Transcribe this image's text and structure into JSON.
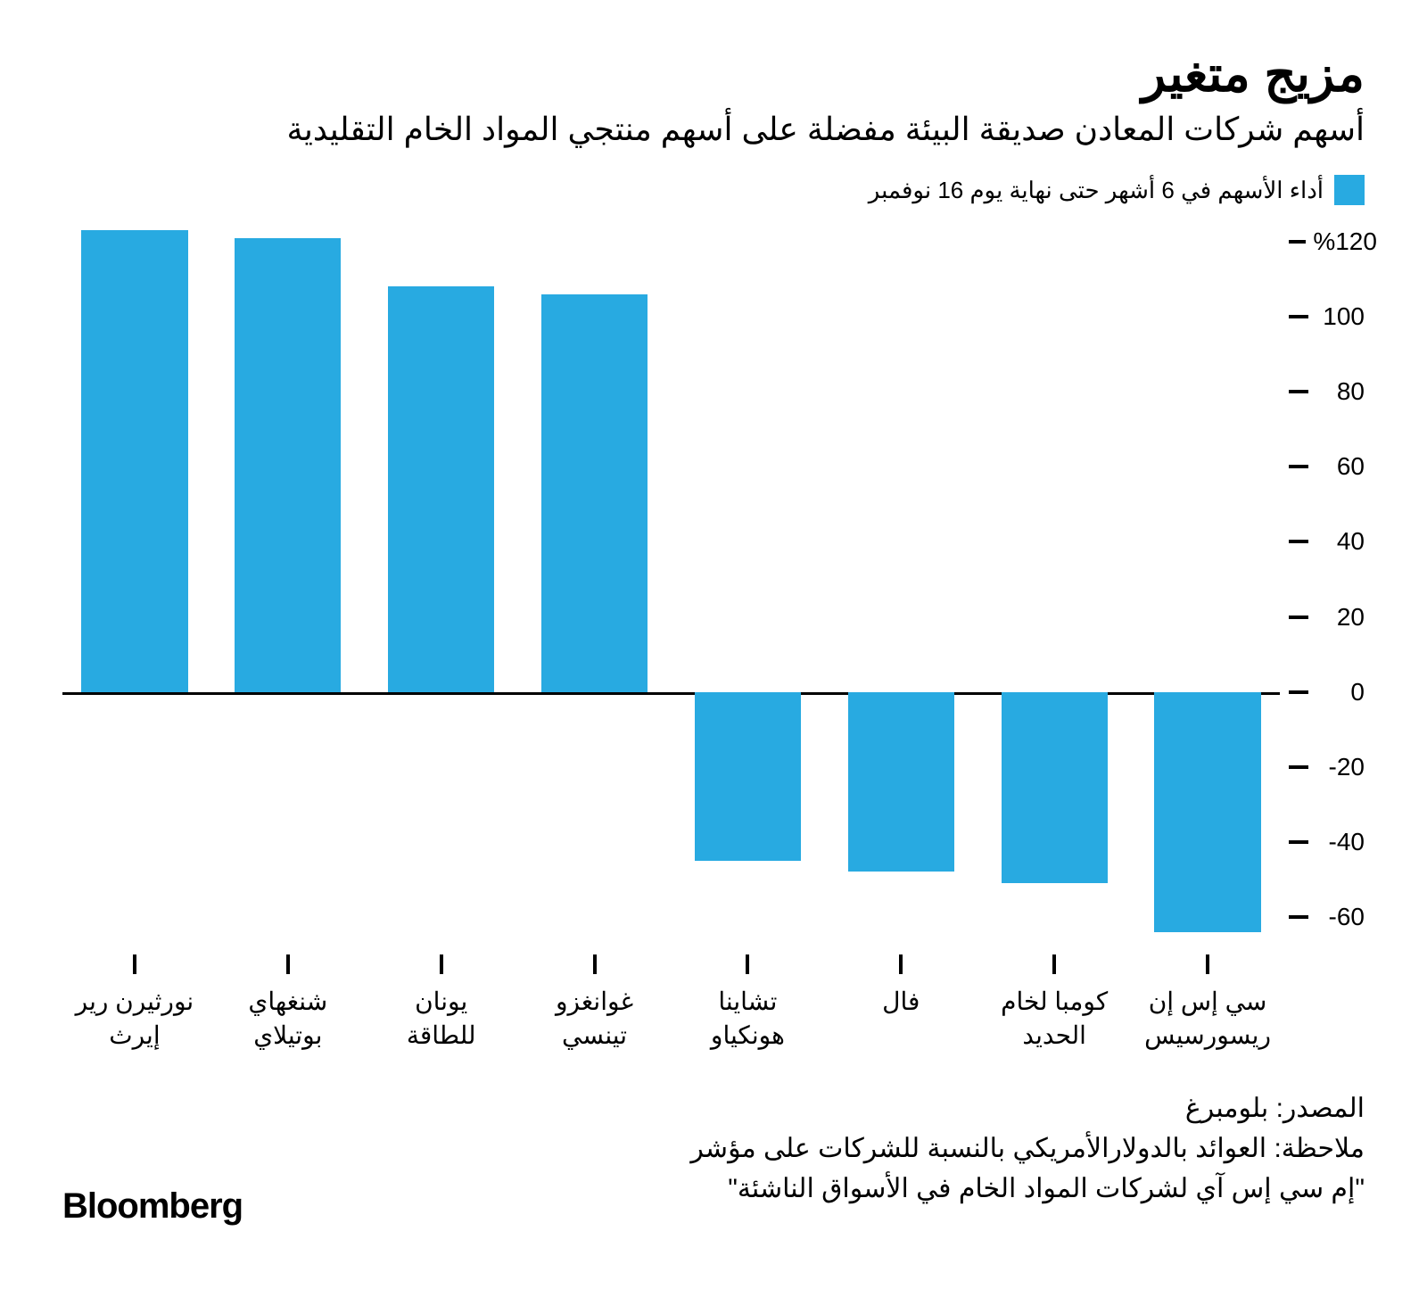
{
  "title": "مزيج متغير",
  "subtitle": "أسهم شركات المعادن صديقة البيئة مفضلة على أسهم منتجي المواد الخام التقليدية",
  "legend": {
    "swatch_color": "#28aae1",
    "label": "أداء الأسهم في 6 أشهر حتى نهاية يوم 16 نوفمبر"
  },
  "chart": {
    "type": "bar",
    "bar_color": "#28aae1",
    "background_color": "#ffffff",
    "zero_line_color": "#000000",
    "tick_color": "#000000",
    "y_min": -70,
    "y_max": 125,
    "y_ticks": [
      {
        "value": 120,
        "label": "%120"
      },
      {
        "value": 100,
        "label": "100"
      },
      {
        "value": 80,
        "label": "80"
      },
      {
        "value": 60,
        "label": "60"
      },
      {
        "value": 40,
        "label": "40"
      },
      {
        "value": 20,
        "label": "20"
      },
      {
        "value": 0,
        "label": "0"
      },
      {
        "value": -20,
        "label": "-20"
      },
      {
        "value": -40,
        "label": "-40"
      },
      {
        "value": -60,
        "label": "-60"
      }
    ],
    "y_label_fontsize": 28,
    "x_label_fontsize": 28,
    "title_fontsize": 56,
    "subtitle_fontsize": 36,
    "bars": [
      {
        "label": "سي إس إن ريسورسيس",
        "value": -64
      },
      {
        "label": "كومبا لخام الحديد",
        "value": -51
      },
      {
        "label": "فال",
        "value": -48
      },
      {
        "label": "تشاينا هونكياو",
        "value": -45
      },
      {
        "label": "غوانغزو تينسي",
        "value": 106
      },
      {
        "label": "يونان للطاقة",
        "value": 108
      },
      {
        "label": "شنغهاي بوتيلاي",
        "value": 121
      },
      {
        "label": "نورثيرن رير إيرث",
        "value": 123
      }
    ]
  },
  "footer": {
    "source": "المصدر: بلومبرغ",
    "note_line1": "ملاحظة: العوائد بالدولارالأمريكي بالنسبة للشركات على مؤشر",
    "note_line2": "\"إم سي إس آي لشركات المواد الخام في الأسواق الناشئة\""
  },
  "brand": "Bloomberg"
}
